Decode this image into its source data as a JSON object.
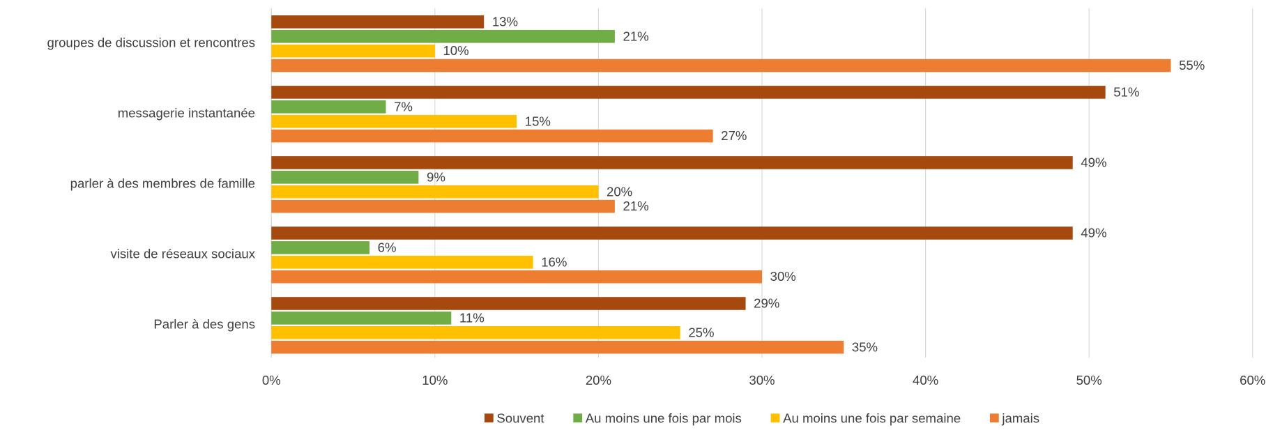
{
  "chart_data": {
    "type": "hbar",
    "categories": [
      "groupes de discussion et rencontres",
      "messagerie instantanée",
      "parler à des membres de famille",
      "visite de réseaux sociaux",
      "Parler à des gens"
    ],
    "series": [
      {
        "name": "Souvent",
        "color": "#a5490f",
        "values": [
          13,
          51,
          49,
          49,
          29
        ],
        "value_labels": [
          "13%",
          "51%",
          "49%",
          "49%",
          "29%"
        ]
      },
      {
        "name": "Au moins une fois par mois",
        "color": "#70ad47",
        "values": [
          21,
          7,
          9,
          6,
          11
        ],
        "value_labels": [
          "21%",
          "7%",
          "9%",
          "6%",
          "11%"
        ]
      },
      {
        "name": "Au moins une fois par semaine",
        "color": "#ffc000",
        "values": [
          10,
          15,
          20,
          16,
          25
        ],
        "value_labels": [
          "10%",
          "15%",
          "20%",
          "16%",
          "25%"
        ]
      },
      {
        "name": "jamais",
        "color": "#ed7d31",
        "values": [
          55,
          27,
          21,
          30,
          35
        ],
        "value_labels": [
          "55%",
          "27%",
          "21%",
          "30%",
          "35%"
        ]
      }
    ],
    "xlim": [
      0,
      60
    ],
    "xticks": [
      {
        "value": 0,
        "label": "0%"
      },
      {
        "value": 10,
        "label": "10%"
      },
      {
        "value": 20,
        "label": "20%"
      },
      {
        "value": 30,
        "label": "30%"
      },
      {
        "value": 40,
        "label": "40%"
      },
      {
        "value": 50,
        "label": "50%"
      },
      {
        "value": 60,
        "label": "60%"
      }
    ],
    "grid": true,
    "legend": "bottom"
  }
}
